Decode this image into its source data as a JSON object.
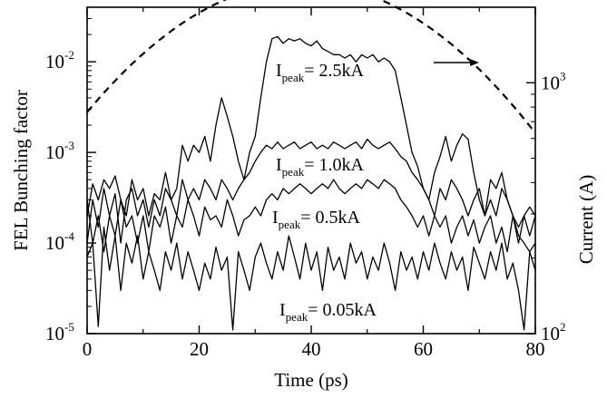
{
  "chart_data": {
    "type": "line",
    "xlabel": "Time (ps)",
    "ylabel": "FEL Bunching factor",
    "y2label": "Current (A)",
    "xlim": [
      0,
      80
    ],
    "ylim": [
      1e-05,
      0.04
    ],
    "y2lim": [
      100,
      2000
    ],
    "yscale": "log",
    "y2scale": "log",
    "grid": false,
    "x_ticks": [
      "0",
      "20",
      "40",
      "60",
      "80"
    ],
    "y_ticks": [
      {
        "base": "10",
        "exp": "-5",
        "value": 1e-05
      },
      {
        "base": "10",
        "exp": "-4",
        "value": 0.0001
      },
      {
        "base": "10",
        "exp": "-3",
        "value": 0.001
      },
      {
        "base": "10",
        "exp": "-2",
        "value": 0.01
      }
    ],
    "y2_ticks": [
      {
        "base": "10",
        "exp": "2",
        "value": 100
      },
      {
        "base": "10",
        "exp": "3",
        "value": 1000
      }
    ],
    "annotations": [
      {
        "main": "I",
        "sub": "peak",
        "rest": "= 2.5kA"
      },
      {
        "main": "I",
        "sub": "peak",
        "rest": "= 1.0kA"
      },
      {
        "main": "I",
        "sub": "peak",
        "rest": "= 0.5kA"
      },
      {
        "main": "I",
        "sub": "peak",
        "rest": "= 0.05kA"
      }
    ],
    "current_curve": {
      "axis": "right",
      "style": "dashed",
      "peak": 2500,
      "center_ps": 38.5,
      "sigma_ps": 25,
      "arrow": "right"
    },
    "series": [
      {
        "peak_current": "2.5kA",
        "x": [
          0,
          1,
          2,
          3,
          4,
          5,
          6,
          7,
          8,
          9,
          10,
          11,
          12,
          13,
          14,
          15,
          16,
          17,
          18,
          19,
          20,
          21,
          22,
          23,
          24,
          25,
          26,
          27,
          28,
          29,
          30,
          31,
          32,
          33,
          34,
          35,
          36,
          37,
          38,
          39,
          40,
          41,
          42,
          43,
          44,
          45,
          46,
          47,
          48,
          49,
          50,
          51,
          52,
          53,
          54,
          55,
          56,
          57,
          58,
          59,
          60,
          61,
          62,
          63,
          64,
          65,
          66,
          67,
          68,
          69,
          70,
          71,
          72,
          73,
          74,
          75,
          76,
          77,
          78,
          79,
          80
        ],
        "y": [
          0.0002,
          0.00045,
          0.0003,
          0.0005,
          0.0004,
          0.00055,
          0.0003,
          0.0002,
          0.0005,
          0.0003,
          0.0004,
          0.0002,
          0.00035,
          0.0003,
          0.0006,
          0.0003,
          0.0004,
          0.0012,
          0.0008,
          0.0012,
          0.001,
          0.0015,
          0.0008,
          0.002,
          0.004,
          0.0025,
          0.0015,
          0.0008,
          0.0005,
          0.001,
          0.0015,
          0.004,
          0.01,
          0.018,
          0.019,
          0.016,
          0.018,
          0.017,
          0.018,
          0.016,
          0.015,
          0.017,
          0.014,
          0.013,
          0.012,
          0.012,
          0.011,
          0.012,
          0.01,
          0.012,
          0.011,
          0.012,
          0.01,
          0.011,
          0.01,
          0.008,
          0.004,
          0.002,
          0.001,
          0.0007,
          0.0004,
          0.0003,
          0.0006,
          0.0009,
          0.0015,
          0.0008,
          0.0012,
          0.0016,
          0.0014,
          0.0006,
          0.0003,
          0.0002,
          0.0005,
          0.0004,
          0.0006,
          0.0003,
          0.0002,
          0.0001,
          0.0002,
          0.00025,
          0.0002
        ]
      },
      {
        "peak_current": "1.0kA",
        "x": [
          0,
          1,
          2,
          3,
          4,
          5,
          6,
          7,
          8,
          9,
          10,
          11,
          12,
          13,
          14,
          15,
          16,
          17,
          18,
          19,
          20,
          21,
          22,
          23,
          24,
          25,
          26,
          27,
          28,
          29,
          30,
          31,
          32,
          33,
          34,
          35,
          36,
          37,
          38,
          39,
          40,
          41,
          42,
          43,
          44,
          45,
          46,
          47,
          48,
          49,
          50,
          51,
          52,
          53,
          54,
          55,
          56,
          57,
          58,
          59,
          60,
          61,
          62,
          63,
          64,
          65,
          66,
          67,
          68,
          69,
          70,
          71,
          72,
          73,
          74,
          75,
          76,
          77,
          78,
          79,
          80
        ],
        "y": [
          0.0001,
          0.0003,
          0.00015,
          0.0004,
          0.0002,
          0.00035,
          0.0001,
          0.0003,
          0.0004,
          0.0002,
          0.0003,
          0.00015,
          0.0003,
          0.0002,
          0.0004,
          0.0003,
          0.0002,
          0.0005,
          0.0003,
          0.0004,
          0.0003,
          0.0005,
          0.0004,
          0.0003,
          0.0005,
          0.0004,
          0.0003,
          0.0004,
          0.0005,
          0.0006,
          0.0008,
          0.001,
          0.0012,
          0.0011,
          0.0013,
          0.0011,
          0.0012,
          0.0013,
          0.0011,
          0.0012,
          0.0013,
          0.0011,
          0.0012,
          0.0011,
          0.0013,
          0.0012,
          0.0011,
          0.0012,
          0.0013,
          0.0011,
          0.0014,
          0.0012,
          0.0011,
          0.0012,
          0.0013,
          0.0011,
          0.0009,
          0.0008,
          0.0006,
          0.0005,
          0.0004,
          0.0003,
          0.0002,
          0.0004,
          0.0003,
          0.0005,
          0.0004,
          0.0003,
          0.0002,
          0.0003,
          0.0004,
          0.0002,
          0.0003,
          0.0002,
          0.0004,
          0.0003,
          0.0002,
          0.00015,
          0.0002,
          0.00012,
          0.0002
        ]
      },
      {
        "peak_current": "0.5kA",
        "x": [
          0,
          1,
          2,
          3,
          4,
          5,
          6,
          7,
          8,
          9,
          10,
          11,
          12,
          13,
          14,
          15,
          16,
          17,
          18,
          19,
          20,
          21,
          22,
          23,
          24,
          25,
          26,
          27,
          28,
          29,
          30,
          31,
          32,
          33,
          34,
          35,
          36,
          37,
          38,
          39,
          40,
          41,
          42,
          43,
          44,
          45,
          46,
          47,
          48,
          49,
          50,
          51,
          52,
          53,
          54,
          55,
          56,
          57,
          58,
          59,
          60,
          61,
          62,
          63,
          64,
          65,
          66,
          67,
          68,
          69,
          70,
          71,
          72,
          73,
          74,
          75,
          76,
          77,
          78,
          79,
          80
        ],
        "y": [
          0.0003,
          0.0001,
          0.0002,
          8e-05,
          0.0002,
          0.00012,
          0.0003,
          0.00015,
          0.0002,
          0.0001,
          0.0002,
          8e-05,
          0.0002,
          0.00015,
          0.00025,
          0.0001,
          0.0002,
          0.00015,
          0.0003,
          0.0002,
          0.00012,
          0.00025,
          0.00018,
          0.0002,
          0.00015,
          0.0003,
          0.0002,
          0.00012,
          0.00018,
          0.0002,
          0.00025,
          0.0002,
          0.0003,
          0.00035,
          0.0003,
          0.0004,
          0.00035,
          0.0004,
          0.00045,
          0.0004,
          0.00035,
          0.0004,
          0.00045,
          0.0004,
          0.0005,
          0.0004,
          0.00035,
          0.0004,
          0.00045,
          0.0004,
          0.0005,
          0.00045,
          0.0004,
          0.0005,
          0.00045,
          0.0004,
          0.0003,
          0.00025,
          0.0002,
          0.00015,
          0.0002,
          0.00012,
          0.0002,
          0.00015,
          0.0002,
          0.0001,
          0.00015,
          0.0002,
          0.00012,
          0.00018,
          0.0001,
          0.00015,
          0.0002,
          0.0001,
          0.00015,
          8e-05,
          0.0002,
          0.00012,
          0.0001,
          8e-05,
          0.0001
        ]
      },
      {
        "peak_current": "0.05kA",
        "x": [
          0,
          1,
          2,
          3,
          4,
          5,
          6,
          7,
          8,
          9,
          10,
          11,
          12,
          13,
          14,
          15,
          16,
          17,
          18,
          19,
          20,
          21,
          22,
          23,
          24,
          25,
          26,
          27,
          28,
          29,
          30,
          31,
          32,
          33,
          34,
          35,
          36,
          37,
          38,
          39,
          40,
          41,
          42,
          43,
          44,
          45,
          46,
          47,
          48,
          49,
          50,
          51,
          52,
          53,
          54,
          55,
          56,
          57,
          58,
          59,
          60,
          61,
          62,
          63,
          64,
          65,
          66,
          67,
          68,
          69,
          70,
          71,
          72,
          73,
          74,
          75,
          76,
          77,
          78,
          79,
          80
        ],
        "y": [
          7e-05,
          0.0001,
          1.2e-05,
          0.00015,
          5e-05,
          0.00012,
          3e-05,
          0.0001,
          6e-05,
          0.00012,
          4e-05,
          8e-05,
          5e-05,
          3e-05,
          8e-05,
          5e-05,
          0.0001,
          4e-05,
          8e-05,
          5e-05,
          3e-05,
          6e-05,
          4e-05,
          9e-05,
          5e-05,
          7e-05,
          1.1e-05,
          8e-05,
          5e-05,
          3e-05,
          7e-05,
          0.0001,
          6e-05,
          4e-05,
          8e-05,
          5e-05,
          0.00012,
          7e-05,
          4e-05,
          0.0001,
          5e-05,
          8e-05,
          3e-05,
          9e-05,
          5e-05,
          7e-05,
          4e-05,
          0.0001,
          6e-05,
          8e-05,
          4e-05,
          7e-05,
          5e-05,
          0.0001,
          6e-05,
          3e-05,
          8e-05,
          5e-05,
          7e-05,
          4e-05,
          8e-05,
          5e-05,
          0.0001,
          6e-05,
          4e-05,
          8e-05,
          5e-05,
          7e-05,
          3e-05,
          9e-05,
          6e-05,
          4e-05,
          8e-05,
          5e-05,
          0.0001,
          4e-05,
          6e-05,
          3e-05,
          1.1e-05,
          8e-05,
          5e-05
        ]
      }
    ]
  }
}
